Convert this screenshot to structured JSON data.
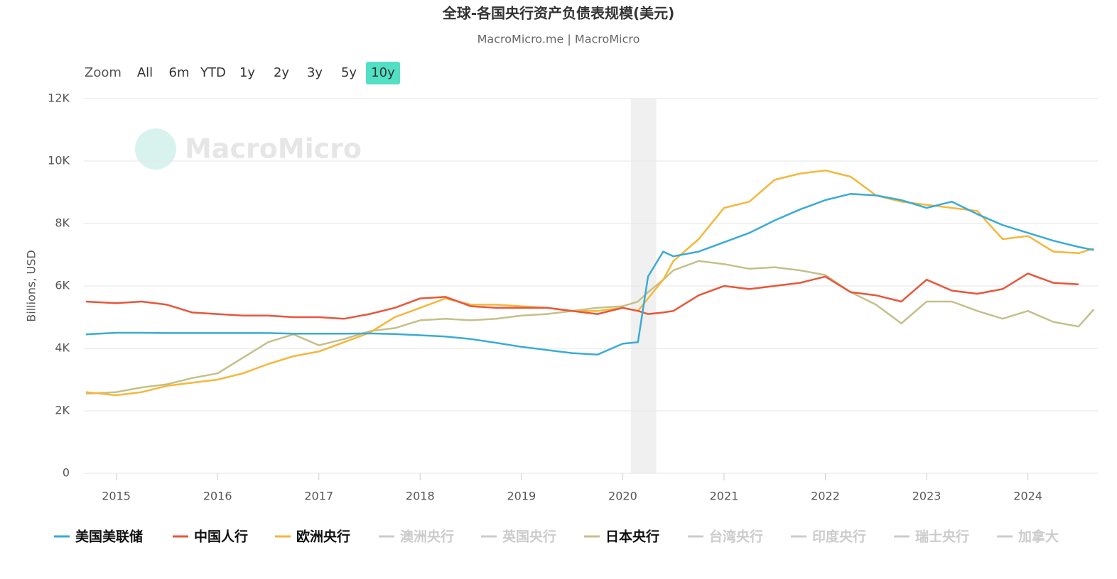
{
  "chart_data": {
    "type": "line",
    "title": "全球-各国央行资产负债表规模(美元)",
    "subtitle": "MacroMicro.me | MacroMicro",
    "watermark": "MacroMicro",
    "zoom_label": "Zoom",
    "zoom_buttons": [
      "All",
      "6m",
      "YTD",
      "1y",
      "2y",
      "3y",
      "5y",
      "10y"
    ],
    "zoom_active": 7,
    "y_label": "Billions, USD",
    "x": [
      2014.7,
      2015.0,
      2015.25,
      2015.5,
      2015.75,
      2016.0,
      2016.25,
      2016.5,
      2016.75,
      2017.0,
      2017.25,
      2017.5,
      2017.75,
      2018.0,
      2018.25,
      2018.5,
      2018.75,
      2019.0,
      2019.25,
      2019.5,
      2019.75,
      2020.0,
      2020.15,
      2020.25,
      2020.4,
      2020.5,
      2020.75,
      2021.0,
      2021.25,
      2021.5,
      2021.75,
      2022.0,
      2022.25,
      2022.5,
      2022.75,
      2023.0,
      2023.25,
      2023.5,
      2023.75,
      2024.0,
      2024.25,
      2024.5,
      2024.65
    ],
    "xlim": [
      2014.68,
      2024.69
    ],
    "xticks": [
      2015,
      2016,
      2017,
      2018,
      2019,
      2020,
      2021,
      2022,
      2023,
      2024
    ],
    "ylim": [
      0,
      12000
    ],
    "yticks": [
      0,
      {
        "value": 2000,
        "label": "2K"
      },
      {
        "value": 4000,
        "label": "4K"
      },
      {
        "value": 6000,
        "label": "6K"
      },
      {
        "value": 8000,
        "label": "8K"
      },
      {
        "value": 10000,
        "label": "10K"
      },
      {
        "value": 12000,
        "label": "12K"
      }
    ],
    "grid": true,
    "shaded_band": {
      "from": 2020.08,
      "to": 2020.33
    },
    "series": [
      {
        "name": "美国美联储",
        "color": "#3aabd6",
        "visible": true,
        "values": [
          4450,
          4500,
          4500,
          4490,
          4490,
          4490,
          4490,
          4490,
          4470,
          4470,
          4470,
          4480,
          4460,
          4420,
          4380,
          4300,
          4180,
          4050,
          3950,
          3850,
          3800,
          4150,
          4200,
          6300,
          7100,
          6950,
          7100,
          7400,
          7700,
          8100,
          8450,
          8750,
          8950,
          8900,
          8750,
          8500,
          8700,
          8300,
          7950,
          7700,
          7450,
          7250,
          7150
        ]
      },
      {
        "name": "中国人行",
        "color": "#e8563a",
        "visible": true,
        "values": [
          5500,
          5450,
          5500,
          5400,
          5150,
          5100,
          5050,
          5050,
          5000,
          5000,
          4950,
          5100,
          5300,
          5600,
          5650,
          5350,
          5300,
          5300,
          5300,
          5200,
          5100,
          5300,
          5200,
          5100,
          5150,
          5200,
          5700,
          6000,
          5900,
          6000,
          6100,
          6300,
          5800,
          5700,
          5500,
          6200,
          5850,
          5750,
          5900,
          6400,
          6100,
          6050,
          null
        ]
      },
      {
        "name": "欧洲央行",
        "color": "#f5b73b",
        "visible": true,
        "values": [
          2600,
          2500,
          2600,
          2800,
          2900,
          3000,
          3200,
          3500,
          3750,
          3900,
          4200,
          4500,
          5000,
          5300,
          5600,
          5400,
          5400,
          5350,
          5300,
          5200,
          5200,
          5300,
          5200,
          5600,
          6200,
          6800,
          7500,
          8500,
          8700,
          9400,
          9600,
          9700,
          9500,
          8900,
          8700,
          8600,
          8500,
          8400,
          7500,
          7600,
          7100,
          7050,
          7200
        ]
      },
      {
        "name": "澳洲央行",
        "visible": false
      },
      {
        "name": "英国央行",
        "visible": false
      },
      {
        "name": "日本央行",
        "color": "#c4c08a",
        "visible": true,
        "values": [
          2550,
          2600,
          2750,
          2850,
          3050,
          3200,
          3700,
          4200,
          4450,
          4100,
          4300,
          4550,
          4650,
          4900,
          4950,
          4900,
          4950,
          5050,
          5100,
          5200,
          5300,
          5350,
          5500,
          5800,
          6200,
          6500,
          6800,
          6700,
          6550,
          6600,
          6500,
          6350,
          5800,
          5400,
          4800,
          5500,
          5500,
          5200,
          4950,
          5200,
          4850,
          4700,
          5250
        ]
      },
      {
        "name": "台湾央行",
        "visible": false
      },
      {
        "name": "印度央行",
        "visible": false
      },
      {
        "name": "瑞士央行",
        "visible": false
      },
      {
        "name": "加拿大",
        "visible": false
      }
    ]
  }
}
